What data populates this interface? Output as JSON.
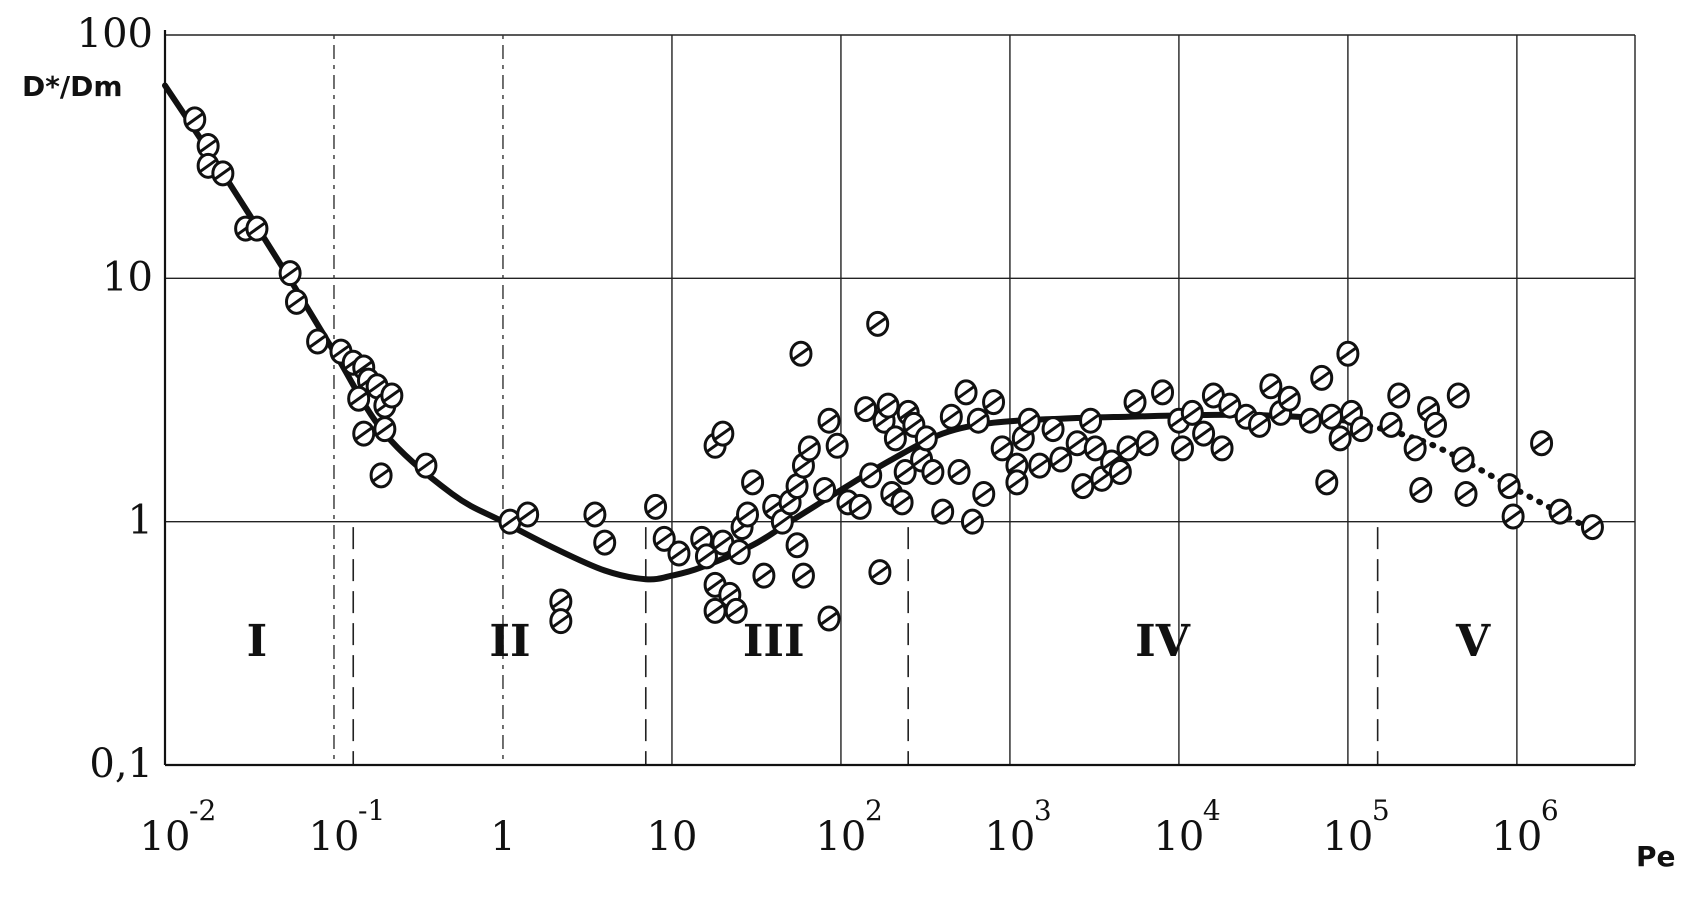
{
  "chart_data": {
    "type": "scatter",
    "title": "",
    "xlabel": "Pe",
    "ylabel": "D*/Dm",
    "x_scale": "log",
    "y_scale": "log",
    "xlim": [
      0.01,
      5000000
    ],
    "ylim": [
      0.1,
      100
    ],
    "grid": true,
    "x_ticks": [
      {
        "value": 0.01,
        "base": "10",
        "exp": "-2"
      },
      {
        "value": 0.1,
        "base": "10",
        "exp": "-1"
      },
      {
        "value": 1,
        "base": "1",
        "exp": ""
      },
      {
        "value": 10,
        "base": "10",
        "exp": ""
      },
      {
        "value": 100,
        "base": "10",
        "exp": "2"
      },
      {
        "value": 1000,
        "base": "10",
        "exp": "3"
      },
      {
        "value": 10000,
        "base": "10",
        "exp": "4"
      },
      {
        "value": 100000,
        "base": "10",
        "exp": "5"
      },
      {
        "value": 1000000,
        "base": "10",
        "exp": "6"
      }
    ],
    "y_ticks": [
      {
        "value": 100,
        "label": "100"
      },
      {
        "value": 10,
        "label": "10"
      },
      {
        "value": 1,
        "label": "1"
      },
      {
        "value": 0.1,
        "label": "0,1"
      }
    ],
    "region_boundaries": [
      0.13,
      7,
      250,
      150000
    ],
    "regions": [
      {
        "label": "I",
        "x": 0.035
      },
      {
        "label": "II",
        "x": 1.1
      },
      {
        "label": "III",
        "x": 40
      },
      {
        "label": "IV",
        "x": 8000
      },
      {
        "label": "V",
        "x": 550000
      }
    ],
    "curve": [
      [
        0.01,
        62
      ],
      [
        0.02,
        30
      ],
      [
        0.05,
        11
      ],
      [
        0.1,
        5
      ],
      [
        0.2,
        2.3
      ],
      [
        0.5,
        1.3
      ],
      [
        1,
        1.0
      ],
      [
        2,
        0.78
      ],
      [
        4,
        0.63
      ],
      [
        7,
        0.58
      ],
      [
        10,
        0.6
      ],
      [
        15,
        0.65
      ],
      [
        30,
        0.8
      ],
      [
        50,
        1.0
      ],
      [
        100,
        1.35
      ],
      [
        200,
        1.8
      ],
      [
        400,
        2.3
      ],
      [
        800,
        2.55
      ],
      [
        2000,
        2.65
      ],
      [
        5000,
        2.7
      ],
      [
        20000,
        2.75
      ],
      [
        50000,
        2.7
      ],
      [
        100000,
        2.6
      ]
    ],
    "curve_extrapolated": [
      [
        100000,
        2.6
      ],
      [
        300000,
        2.1
      ],
      [
        1000000,
        1.35
      ],
      [
        3000000,
        0.9
      ]
    ],
    "points": [
      [
        0.015,
        45
      ],
      [
        0.018,
        35
      ],
      [
        0.018,
        29
      ],
      [
        0.022,
        27
      ],
      [
        0.03,
        16
      ],
      [
        0.035,
        16
      ],
      [
        0.055,
        10.5
      ],
      [
        0.06,
        8
      ],
      [
        0.08,
        5.5
      ],
      [
        0.11,
        5
      ],
      [
        0.13,
        4.5
      ],
      [
        0.15,
        4.3
      ],
      [
        0.16,
        3.8
      ],
      [
        0.14,
        3.2
      ],
      [
        0.18,
        3.6
      ],
      [
        0.2,
        3.0
      ],
      [
        0.22,
        3.3
      ],
      [
        0.15,
        2.3
      ],
      [
        0.2,
        2.4
      ],
      [
        0.19,
        1.55
      ],
      [
        0.35,
        1.7
      ],
      [
        1.1,
        1.0
      ],
      [
        1.4,
        1.07
      ],
      [
        2.2,
        0.47
      ],
      [
        2.2,
        0.39
      ],
      [
        3.5,
        1.07
      ],
      [
        4,
        0.82
      ],
      [
        8,
        1.15
      ],
      [
        9,
        0.85
      ],
      [
        11,
        0.74
      ],
      [
        15,
        0.85
      ],
      [
        16,
        0.72
      ],
      [
        18,
        0.55
      ],
      [
        20,
        0.82
      ],
      [
        18,
        0.43
      ],
      [
        22,
        0.5
      ],
      [
        24,
        0.43
      ],
      [
        25,
        0.75
      ],
      [
        26,
        0.95
      ],
      [
        28,
        1.07
      ],
      [
        30,
        1.45
      ],
      [
        18,
        2.05
      ],
      [
        20,
        2.3
      ],
      [
        35,
        0.6
      ],
      [
        40,
        1.15
      ],
      [
        45,
        1.0
      ],
      [
        50,
        1.2
      ],
      [
        55,
        1.4
      ],
      [
        55,
        0.8
      ],
      [
        60,
        0.6
      ],
      [
        58,
        4.9
      ],
      [
        60,
        1.7
      ],
      [
        65,
        2.0
      ],
      [
        80,
        1.35
      ],
      [
        85,
        2.6
      ],
      [
        85,
        0.4
      ],
      [
        95,
        2.05
      ],
      [
        110,
        1.2
      ],
      [
        130,
        1.15
      ],
      [
        140,
        2.9
      ],
      [
        150,
        1.55
      ],
      [
        165,
        6.5
      ],
      [
        170,
        0.62
      ],
      [
        180,
        2.6
      ],
      [
        190,
        3.0
      ],
      [
        200,
        1.3
      ],
      [
        210,
        2.2
      ],
      [
        230,
        1.2
      ],
      [
        240,
        1.6
      ],
      [
        250,
        2.8
      ],
      [
        270,
        2.5
      ],
      [
        300,
        1.8
      ],
      [
        320,
        2.2
      ],
      [
        350,
        1.6
      ],
      [
        400,
        1.1
      ],
      [
        450,
        2.7
      ],
      [
        500,
        1.6
      ],
      [
        550,
        3.4
      ],
      [
        600,
        1.0
      ],
      [
        650,
        2.6
      ],
      [
        700,
        1.3
      ],
      [
        800,
        3.1
      ],
      [
        900,
        2.0
      ],
      [
        1100,
        1.7
      ],
      [
        1200,
        2.2
      ],
      [
        1100,
        1.45
      ],
      [
        1300,
        2.6
      ],
      [
        1500,
        1.7
      ],
      [
        1800,
        2.4
      ],
      [
        2000,
        1.8
      ],
      [
        2500,
        2.1
      ],
      [
        2700,
        1.4
      ],
      [
        3000,
        2.6
      ],
      [
        3200,
        2.0
      ],
      [
        3500,
        1.5
      ],
      [
        4000,
        1.75
      ],
      [
        4500,
        1.6
      ],
      [
        5000,
        2.0
      ],
      [
        5500,
        3.1
      ],
      [
        6500,
        2.1
      ],
      [
        8000,
        3.4
      ],
      [
        10000,
        2.6
      ],
      [
        10500,
        2.0
      ],
      [
        12000,
        2.8
      ],
      [
        14000,
        2.3
      ],
      [
        16000,
        3.3
      ],
      [
        18000,
        2.0
      ],
      [
        20000,
        3.0
      ],
      [
        25000,
        2.7
      ],
      [
        30000,
        2.5
      ],
      [
        35000,
        3.6
      ],
      [
        40000,
        2.8
      ],
      [
        45000,
        3.2
      ],
      [
        60000,
        2.6
      ],
      [
        70000,
        3.9
      ],
      [
        75000,
        1.45
      ],
      [
        80000,
        2.7
      ],
      [
        90000,
        2.2
      ],
      [
        100000,
        4.9
      ],
      [
        105000,
        2.8
      ],
      [
        120000,
        2.4
      ],
      [
        180000,
        2.5
      ],
      [
        200000,
        3.3
      ],
      [
        250000,
        2.0
      ],
      [
        270000,
        1.35
      ],
      [
        300000,
        2.9
      ],
      [
        330000,
        2.5
      ],
      [
        450000,
        3.3
      ],
      [
        480000,
        1.8
      ],
      [
        500000,
        1.3
      ],
      [
        900000,
        1.4
      ],
      [
        950000,
        1.05
      ],
      [
        1400000,
        2.1
      ],
      [
        1800000,
        1.1
      ],
      [
        2800000,
        0.95
      ]
    ]
  },
  "ui": {
    "ylabel_text": "D*/Dm",
    "xlabel_text": "Pe"
  }
}
